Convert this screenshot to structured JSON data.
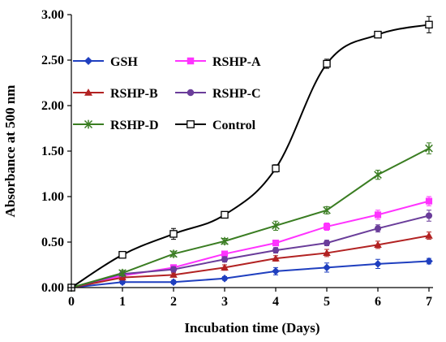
{
  "chart_data": {
    "type": "line",
    "xlabel": "Incubation time (Days)",
    "ylabel": "Absorbance at 500 nm",
    "x": [
      0,
      1,
      2,
      3,
      4,
      5,
      6,
      7
    ],
    "x_ticks": [
      "0",
      "1",
      "2",
      "3",
      "4",
      "5",
      "6",
      "7"
    ],
    "xlim": [
      0,
      7
    ],
    "y_ticks": [
      "0.00",
      "0.50",
      "1.00",
      "1.50",
      "2.00",
      "2.50",
      "3.00"
    ],
    "ylim": [
      0,
      3
    ],
    "grid": false,
    "legend_position": "top-left",
    "series": [
      {
        "name": "GSH",
        "color": "#1f3fbf",
        "marker": "diamond",
        "smooth": false,
        "values": [
          0.0,
          0.06,
          0.06,
          0.1,
          0.18,
          0.22,
          0.26,
          0.29
        ],
        "errors": [
          0.02,
          0.02,
          0.02,
          0.02,
          0.04,
          0.05,
          0.05,
          0.03
        ]
      },
      {
        "name": "RSHP-A",
        "color": "#ff33ff",
        "marker": "square",
        "smooth": false,
        "values": [
          0.0,
          0.13,
          0.22,
          0.37,
          0.49,
          0.67,
          0.8,
          0.95
        ],
        "errors": [
          0.02,
          0.02,
          0.03,
          0.03,
          0.03,
          0.04,
          0.05,
          0.05
        ]
      },
      {
        "name": "RSHP-B",
        "color": "#b22222",
        "marker": "triangle",
        "smooth": false,
        "values": [
          0.0,
          0.11,
          0.14,
          0.22,
          0.32,
          0.38,
          0.47,
          0.57
        ],
        "errors": [
          0.02,
          0.02,
          0.02,
          0.03,
          0.03,
          0.04,
          0.04,
          0.04
        ]
      },
      {
        "name": "RSHP-C",
        "color": "#6a3d9a",
        "marker": "circle",
        "smooth": false,
        "values": [
          0.0,
          0.15,
          0.2,
          0.31,
          0.41,
          0.49,
          0.65,
          0.79
        ],
        "errors": [
          0.02,
          0.02,
          0.03,
          0.03,
          0.03,
          0.03,
          0.04,
          0.06
        ]
      },
      {
        "name": "RSHP-D",
        "color": "#3a7d22",
        "marker": "star",
        "smooth": false,
        "values": [
          0.0,
          0.16,
          0.37,
          0.51,
          0.68,
          0.85,
          1.24,
          1.53
        ],
        "errors": [
          0.02,
          0.03,
          0.03,
          0.03,
          0.05,
          0.04,
          0.05,
          0.06
        ]
      },
      {
        "name": "Control",
        "color": "#000000",
        "marker": "open-square",
        "smooth": true,
        "values": [
          0.0,
          0.36,
          0.59,
          0.8,
          1.31,
          2.46,
          2.78,
          2.89
        ],
        "errors": [
          0.02,
          0.03,
          0.06,
          0.03,
          0.04,
          0.05,
          0.03,
          0.09
        ]
      }
    ]
  }
}
